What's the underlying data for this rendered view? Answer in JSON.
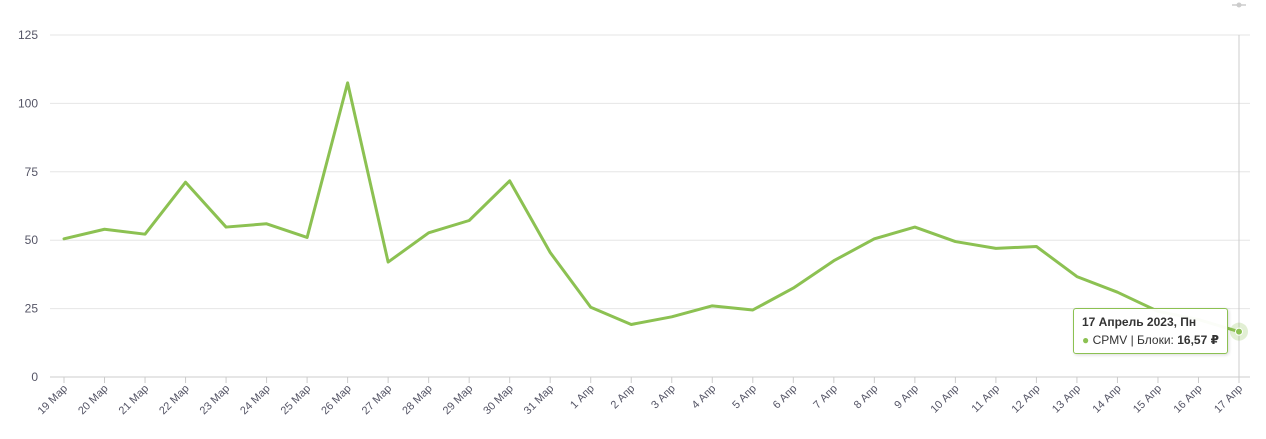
{
  "chart_data": {
    "type": "line",
    "categories": [
      "19 Мар",
      "20 Мар",
      "21 Мар",
      "22 Мар",
      "23 Мар",
      "24 Мар",
      "25 Мар",
      "26 Мар",
      "27 Мар",
      "28 Мар",
      "29 Мар",
      "30 Мар",
      "31 Мар",
      "1 Апр",
      "2 Апр",
      "3 Апр",
      "4 Апр",
      "5 Апр",
      "6 Апр",
      "7 Апр",
      "8 Апр",
      "9 Апр",
      "10 Апр",
      "11 Апр",
      "12 Апр",
      "13 Апр",
      "14 Апр",
      "15 Апр",
      "16 Апр",
      "17 Апр"
    ],
    "series": [
      {
        "color": "#8cc152",
        "values": [
          50.5,
          54.0,
          52.2,
          71.2,
          54.8,
          56.0,
          51.0,
          107.5,
          42.0,
          52.7,
          57.2,
          71.7,
          45.5,
          25.5,
          19.2,
          22.0,
          26.0,
          24.5,
          32.5,
          42.5,
          50.5,
          54.8,
          49.5,
          47.0,
          47.7,
          36.7,
          31.0,
          24.0,
          21.0,
          16.57
        ]
      }
    ],
    "ylim": [
      0,
      125
    ],
    "yticks": [
      "0",
      "25",
      "50",
      "75",
      "100",
      "125"
    ],
    "grid": true,
    "tooltip": {
      "title": "17 Апрель 2023, Пн",
      "series_label": "CPMV | Блоки: ",
      "value": "16,57 ₽"
    }
  }
}
